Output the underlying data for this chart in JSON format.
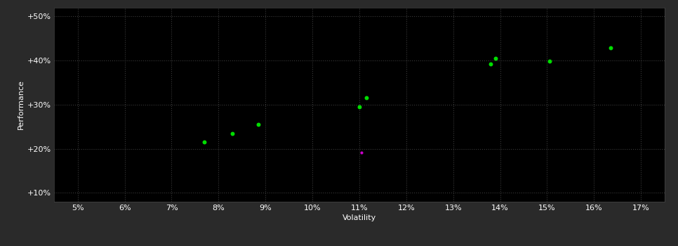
{
  "background_color": "#2a2a2a",
  "plot_bg_color": "#000000",
  "grid_color": "#3a3a3a",
  "green_color": "#00dd00",
  "magenta_color": "#cc00cc",
  "green_points": [
    [
      7.7,
      21.5
    ],
    [
      8.3,
      23.5
    ],
    [
      8.85,
      25.5
    ],
    [
      11.0,
      29.5
    ],
    [
      11.15,
      31.5
    ],
    [
      13.8,
      39.2
    ],
    [
      13.9,
      40.5
    ],
    [
      15.05,
      39.8
    ],
    [
      16.35,
      42.8
    ]
  ],
  "magenta_points": [
    [
      11.05,
      19.2
    ]
  ],
  "xlabel": "Volatility",
  "ylabel": "Performance",
  "xlim": [
    4.5,
    17.5
  ],
  "ylim": [
    8.0,
    52.0
  ],
  "xticks": [
    5,
    6,
    7,
    8,
    9,
    10,
    11,
    12,
    13,
    14,
    15,
    16,
    17
  ],
  "yticks": [
    10,
    20,
    30,
    40,
    50
  ],
  "marker_size": 18,
  "axis_fontsize": 8,
  "tick_fontsize": 8
}
